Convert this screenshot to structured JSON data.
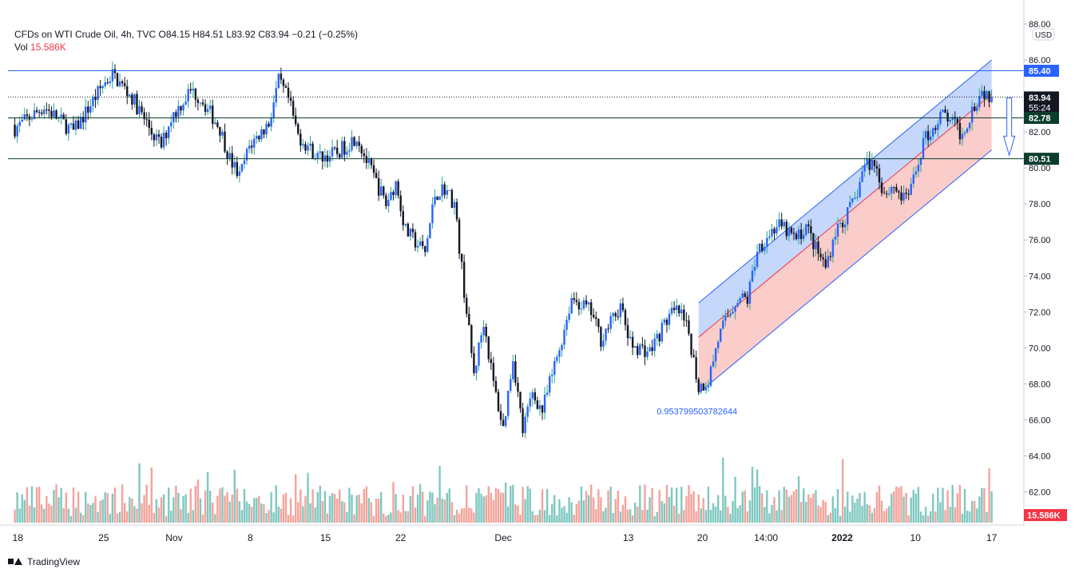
{
  "legend": {
    "line1": "CFDs on WTI Crude Oil, 4h, TVC  O84.15  H84.51  L83.92  C83.94  −0.21 (−0.25%)",
    "vol_label": "Vol",
    "vol_value": "15.586K"
  },
  "footer": {
    "brand": "TradingView"
  },
  "chart_data": {
    "type": "candlestick",
    "title": "CFDs on WTI Crude Oil, 4h, TVC",
    "currency": "USD",
    "ylim": [
      61,
      88
    ],
    "y_ticks": [
      "62.00",
      "64.00",
      "66.00",
      "68.00",
      "70.00",
      "72.00",
      "74.00",
      "76.00",
      "78.00",
      "80.00",
      "82.00",
      "84.00",
      "86.00",
      "88.00"
    ],
    "x_ticks": [
      {
        "label": "18",
        "at": 0.3
      },
      {
        "label": "25",
        "at": 9.1
      },
      {
        "label": "Nov",
        "at": 16.3
      },
      {
        "label": "8",
        "at": 24.1
      },
      {
        "label": "15",
        "at": 31.8
      },
      {
        "label": "22",
        "at": 39.5
      },
      {
        "label": "Dec",
        "at": 50.0
      },
      {
        "label": "13",
        "at": 62.8
      },
      {
        "label": "20",
        "at": 70.4
      },
      {
        "label": "14:00",
        "at": 76.9
      },
      {
        "label": "2022",
        "at": 84.7
      },
      {
        "label": "10",
        "at": 92.2
      },
      {
        "label": "17",
        "at": 100.0
      }
    ],
    "x_range": [
      -0.7,
      103.3
    ],
    "anchors": [
      [
        0,
        82.2
      ],
      [
        3,
        83.4
      ],
      [
        6,
        82.0
      ],
      [
        9,
        84.6
      ],
      [
        10,
        85.2
      ],
      [
        12,
        83.9
      ],
      [
        14,
        82.0
      ],
      [
        15,
        81.2
      ],
      [
        16,
        82.8
      ],
      [
        18,
        84.3
      ],
      [
        19,
        83.9
      ],
      [
        21,
        82.2
      ],
      [
        22,
        80.5
      ],
      [
        23,
        79.5
      ],
      [
        24,
        81.2
      ],
      [
        26,
        82.5
      ],
      [
        27,
        84.8
      ],
      [
        28,
        83.8
      ],
      [
        29,
        81.8
      ],
      [
        31,
        80.6
      ],
      [
        33,
        80.8
      ],
      [
        35,
        81.8
      ],
      [
        36,
        80.4
      ],
      [
        38,
        78.0
      ],
      [
        39,
        79.2
      ],
      [
        40,
        76.5
      ],
      [
        42,
        75.3
      ],
      [
        43,
        78.5
      ],
      [
        44,
        78.9
      ],
      [
        45,
        78.0
      ],
      [
        46,
        73.2
      ],
      [
        47,
        68.5
      ],
      [
        48,
        71.5
      ],
      [
        49,
        68.0
      ],
      [
        50,
        65.5
      ],
      [
        51,
        69.5
      ],
      [
        52,
        65.4
      ],
      [
        53,
        67.5
      ],
      [
        54,
        66.5
      ],
      [
        56,
        70.5
      ],
      [
        57,
        72.8
      ],
      [
        59,
        72.0
      ],
      [
        60,
        70.5
      ],
      [
        62,
        72.3
      ],
      [
        63,
        70.2
      ],
      [
        65,
        69.8
      ],
      [
        67,
        71.8
      ],
      [
        68,
        72.0
      ],
      [
        69,
        70.8
      ],
      [
        70,
        67.8
      ],
      [
        71,
        68.2
      ],
      [
        72,
        70.5
      ],
      [
        73,
        71.8
      ],
      [
        74,
        72.8
      ],
      [
        75,
        72.7
      ],
      [
        76,
        75.5
      ],
      [
        77,
        76.2
      ],
      [
        78,
        76.8
      ],
      [
        79,
        76.5
      ],
      [
        80,
        76.0
      ],
      [
        81,
        76.8
      ],
      [
        82,
        75.5
      ],
      [
        83,
        74.5
      ],
      [
        84,
        76.5
      ],
      [
        85,
        77.2
      ],
      [
        86,
        78.2
      ],
      [
        87,
        80.2
      ],
      [
        88,
        80.3
      ],
      [
        89,
        78.6
      ],
      [
        90,
        79.0
      ],
      [
        91,
        78.2
      ],
      [
        92,
        79.2
      ],
      [
        93,
        81.5
      ],
      [
        94,
        82.2
      ],
      [
        95,
        83.0
      ],
      [
        96,
        82.5
      ],
      [
        97,
        81.8
      ],
      [
        98,
        83.3
      ],
      [
        99,
        84.3
      ],
      [
        100,
        83.94
      ]
    ],
    "channel": {
      "start": {
        "x": 70,
        "lower": 67.5
      },
      "end": {
        "x": 100,
        "lower": 81.0
      },
      "mid_offset": 3.1,
      "top_offset": 5.0,
      "label": "0.953799503782644"
    },
    "hlines": [
      {
        "price": 85.4,
        "label": "85.40",
        "color": "#2962ff",
        "style": "solid"
      },
      {
        "price": 83.94,
        "label": "83.94",
        "sublabel": "55:24",
        "color": "#131722",
        "style": "dotted"
      },
      {
        "price": 82.78,
        "label": "82.78",
        "color": "#0b3d2e",
        "style": "solid"
      },
      {
        "price": 80.51,
        "label": "80.51",
        "color": "#0b3d2e",
        "style": "solid"
      }
    ],
    "forecast_arrow": {
      "x": 101.8,
      "from": 83.9,
      "to": 80.7
    },
    "volume_label": "15.586K",
    "colors": {
      "up": "#26a69a",
      "down": "#131722",
      "up_body": "#2962ff",
      "vol_up": "#7fc8c0",
      "vol_down": "#f3a39b",
      "channel_upper": "#bcd0fc",
      "channel_lower": "#f9c3c1",
      "channel_line": "#2962ff"
    }
  }
}
